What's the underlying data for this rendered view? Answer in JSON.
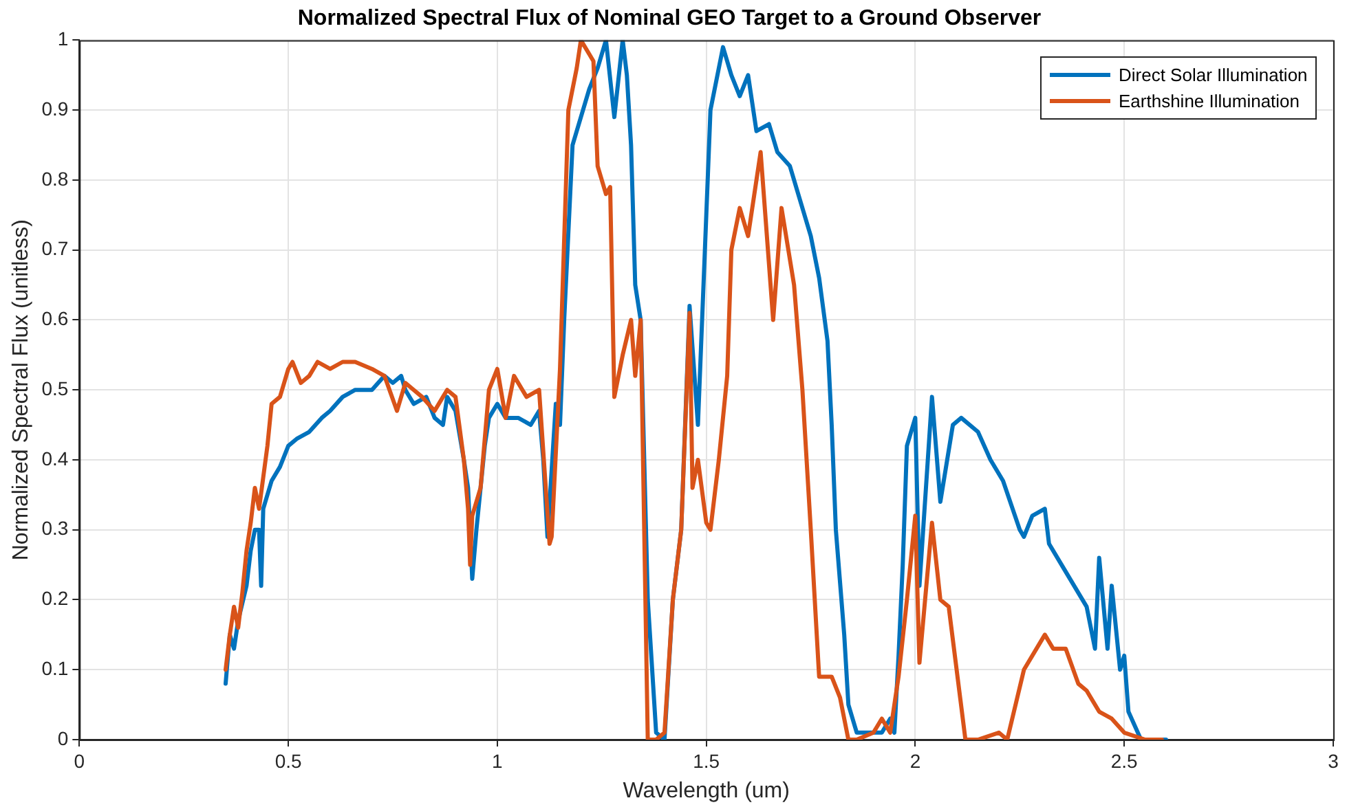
{
  "chart_data": {
    "type": "line",
    "title": "Normalized Spectral Flux of Nominal GEO Target to a Ground Observer",
    "xlabel": "Wavelength (um)",
    "ylabel": "Normalized Spectral Flux (unitless)",
    "xlim": [
      0,
      3
    ],
    "xticks": [
      0,
      0.5,
      1,
      1.5,
      2,
      2.5,
      3
    ],
    "ylim": [
      0,
      1
    ],
    "yticks": [
      0,
      0.1,
      0.2,
      0.3,
      0.4,
      0.5,
      0.6,
      0.7,
      0.8,
      0.9,
      1
    ],
    "grid": true,
    "legend": "top right",
    "marker": "none",
    "line_style": "solid",
    "series": [
      {
        "name": "Direct Solar Illumination",
        "color": "#0072bd",
        "x": [
          0.35,
          0.36,
          0.37,
          0.38,
          0.4,
          0.41,
          0.42,
          0.43,
          0.435,
          0.44,
          0.46,
          0.48,
          0.5,
          0.52,
          0.55,
          0.58,
          0.6,
          0.63,
          0.66,
          0.7,
          0.73,
          0.75,
          0.77,
          0.78,
          0.8,
          0.83,
          0.85,
          0.87,
          0.88,
          0.9,
          0.92,
          0.93,
          0.94,
          0.95,
          0.97,
          0.98,
          1.0,
          1.02,
          1.05,
          1.08,
          1.1,
          1.11,
          1.12,
          1.14,
          1.15,
          1.16,
          1.18,
          1.2,
          1.22,
          1.24,
          1.26,
          1.28,
          1.3,
          1.31,
          1.32,
          1.33,
          1.343,
          1.36,
          1.38,
          1.4,
          1.42,
          1.44,
          1.46,
          1.48,
          1.5,
          1.51,
          1.54,
          1.56,
          1.58,
          1.6,
          1.62,
          1.65,
          1.67,
          1.7,
          1.72,
          1.75,
          1.77,
          1.79,
          1.8,
          1.81,
          1.83,
          1.84,
          1.86,
          1.88,
          1.92,
          1.94,
          1.95,
          1.96,
          1.97,
          1.98,
          2.0,
          2.01,
          2.04,
          2.06,
          2.09,
          2.11,
          2.15,
          2.18,
          2.21,
          2.25,
          2.26,
          2.28,
          2.31,
          2.32,
          2.35,
          2.41,
          2.43,
          2.44,
          2.46,
          2.47,
          2.49,
          2.5,
          2.51,
          2.54,
          2.6
        ],
        "values": [
          0.08,
          0.15,
          0.13,
          0.17,
          0.22,
          0.27,
          0.3,
          0.3,
          0.22,
          0.33,
          0.37,
          0.39,
          0.42,
          0.43,
          0.44,
          0.46,
          0.47,
          0.49,
          0.5,
          0.5,
          0.52,
          0.51,
          0.52,
          0.5,
          0.48,
          0.49,
          0.46,
          0.45,
          0.49,
          0.47,
          0.4,
          0.36,
          0.23,
          0.3,
          0.42,
          0.46,
          0.48,
          0.46,
          0.46,
          0.45,
          0.47,
          0.4,
          0.29,
          0.48,
          0.45,
          0.6,
          0.85,
          0.89,
          0.93,
          0.96,
          1.0,
          0.89,
          1.0,
          0.95,
          0.85,
          0.65,
          0.6,
          0.2,
          0.01,
          0.0,
          0.2,
          0.3,
          0.62,
          0.45,
          0.75,
          0.9,
          0.99,
          0.95,
          0.92,
          0.95,
          0.87,
          0.88,
          0.84,
          0.82,
          0.78,
          0.72,
          0.66,
          0.57,
          0.45,
          0.3,
          0.15,
          0.05,
          0.01,
          0.01,
          0.01,
          0.03,
          0.01,
          0.12,
          0.25,
          0.42,
          0.46,
          0.22,
          0.49,
          0.34,
          0.45,
          0.46,
          0.44,
          0.4,
          0.37,
          0.3,
          0.29,
          0.32,
          0.33,
          0.28,
          0.25,
          0.19,
          0.13,
          0.26,
          0.13,
          0.22,
          0.1,
          0.12,
          0.04,
          0.0,
          0.0
        ]
      },
      {
        "name": "Earthshine Illumination",
        "color": "#d95319",
        "x": [
          0.35,
          0.36,
          0.37,
          0.38,
          0.39,
          0.4,
          0.41,
          0.42,
          0.43,
          0.45,
          0.46,
          0.48,
          0.5,
          0.51,
          0.53,
          0.55,
          0.57,
          0.6,
          0.63,
          0.66,
          0.7,
          0.73,
          0.76,
          0.78,
          0.8,
          0.82,
          0.85,
          0.87,
          0.88,
          0.9,
          0.92,
          0.93,
          0.935,
          0.94,
          0.96,
          0.98,
          1.0,
          1.02,
          1.04,
          1.07,
          1.1,
          1.125,
          1.13,
          1.15,
          1.17,
          1.19,
          1.2,
          1.22,
          1.23,
          1.24,
          1.26,
          1.27,
          1.28,
          1.3,
          1.32,
          1.33,
          1.343,
          1.36,
          1.38,
          1.4,
          1.42,
          1.44,
          1.46,
          1.467,
          1.48,
          1.5,
          1.51,
          1.53,
          1.55,
          1.56,
          1.58,
          1.6,
          1.63,
          1.66,
          1.68,
          1.71,
          1.73,
          1.75,
          1.77,
          1.8,
          1.82,
          1.84,
          1.86,
          1.9,
          1.92,
          1.94,
          1.96,
          1.98,
          2.0,
          2.01,
          2.04,
          2.06,
          2.08,
          2.12,
          2.15,
          2.2,
          2.22,
          2.26,
          2.31,
          2.33,
          2.36,
          2.39,
          2.41,
          2.44,
          2.47,
          2.5,
          2.55,
          2.59
        ],
        "values": [
          0.1,
          0.15,
          0.19,
          0.16,
          0.21,
          0.27,
          0.31,
          0.36,
          0.33,
          0.42,
          0.48,
          0.49,
          0.53,
          0.54,
          0.51,
          0.52,
          0.54,
          0.53,
          0.54,
          0.54,
          0.53,
          0.52,
          0.47,
          0.51,
          0.5,
          0.49,
          0.47,
          0.49,
          0.5,
          0.49,
          0.4,
          0.33,
          0.25,
          0.32,
          0.36,
          0.5,
          0.53,
          0.46,
          0.52,
          0.49,
          0.5,
          0.28,
          0.29,
          0.53,
          0.9,
          0.96,
          1.0,
          0.98,
          0.97,
          0.82,
          0.78,
          0.79,
          0.49,
          0.55,
          0.6,
          0.52,
          0.6,
          0.0,
          0.0,
          0.01,
          0.2,
          0.3,
          0.61,
          0.36,
          0.4,
          0.31,
          0.3,
          0.4,
          0.52,
          0.7,
          0.76,
          0.72,
          0.84,
          0.6,
          0.76,
          0.65,
          0.5,
          0.3,
          0.09,
          0.09,
          0.06,
          0.0,
          0.0,
          0.01,
          0.03,
          0.01,
          0.09,
          0.2,
          0.32,
          0.11,
          0.31,
          0.2,
          0.19,
          0.0,
          0.0,
          0.01,
          0.0,
          0.1,
          0.15,
          0.13,
          0.13,
          0.08,
          0.07,
          0.04,
          0.03,
          0.01,
          0.0,
          0.0
        ]
      }
    ]
  }
}
